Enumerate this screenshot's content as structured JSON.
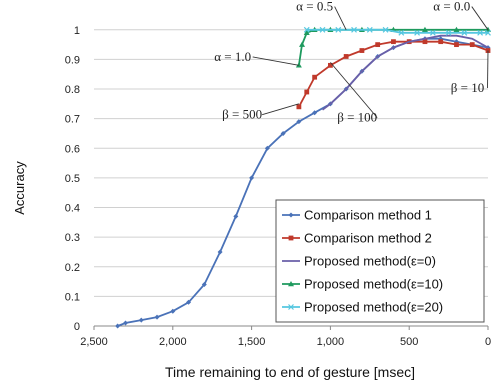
{
  "chart_data": {
    "type": "line",
    "title": "",
    "xlabel": "Time remaining to end of gesture [msec]",
    "ylabel": "Accuracy",
    "x_reversed": true,
    "xlim": [
      2500,
      0
    ],
    "ylim": [
      0,
      1.05
    ],
    "xticks": [
      "2,500",
      "2,000",
      "1,500",
      "1,000",
      "500",
      "0"
    ],
    "xtick_values": [
      2500,
      2000,
      1500,
      1000,
      500,
      0
    ],
    "yticks": [
      "0",
      "0.1",
      "0.2",
      "0.3",
      "0.4",
      "0.5",
      "0.6",
      "0.7",
      "0.8",
      "0.9",
      "1"
    ],
    "ytick_values": [
      0,
      0.1,
      0.2,
      0.3,
      0.4,
      0.5,
      0.6,
      0.7,
      0.8,
      0.9,
      1
    ],
    "grid": "horizontal",
    "legend_position": "bottom-right",
    "series": [
      {
        "name": "Comparison method 1",
        "color": "#4a72b8",
        "marker": "diamond",
        "points": [
          [
            2350,
            0.0
          ],
          [
            2300,
            0.01
          ],
          [
            2200,
            0.02
          ],
          [
            2100,
            0.03
          ],
          [
            2000,
            0.05
          ],
          [
            1900,
            0.08
          ],
          [
            1800,
            0.14
          ],
          [
            1700,
            0.25
          ],
          [
            1600,
            0.37
          ],
          [
            1500,
            0.5
          ],
          [
            1400,
            0.6
          ],
          [
            1300,
            0.65
          ],
          [
            1200,
            0.69
          ],
          [
            1100,
            0.72
          ],
          [
            1000,
            0.75
          ],
          [
            900,
            0.8
          ],
          [
            800,
            0.86
          ],
          [
            700,
            0.91
          ],
          [
            600,
            0.94
          ],
          [
            500,
            0.96
          ],
          [
            400,
            0.97
          ],
          [
            300,
            0.97
          ],
          [
            200,
            0.96
          ],
          [
            100,
            0.95
          ],
          [
            0,
            0.94
          ]
        ]
      },
      {
        "name": "Comparison method 2",
        "color": "#c0392b",
        "marker": "square",
        "points": [
          [
            1200,
            0.74
          ],
          [
            1150,
            0.79
          ],
          [
            1100,
            0.84
          ],
          [
            1000,
            0.88
          ],
          [
            900,
            0.91
          ],
          [
            800,
            0.93
          ],
          [
            700,
            0.95
          ],
          [
            600,
            0.96
          ],
          [
            500,
            0.96
          ],
          [
            400,
            0.96
          ],
          [
            300,
            0.96
          ],
          [
            200,
            0.95
          ],
          [
            100,
            0.95
          ],
          [
            0,
            0.93
          ]
        ]
      },
      {
        "name": "Proposed method(ε=0)",
        "color": "#6a5fa8",
        "marker": "line",
        "points": [
          [
            1050,
            0.73
          ],
          [
            1000,
            0.75
          ],
          [
            900,
            0.8
          ],
          [
            800,
            0.86
          ],
          [
            700,
            0.91
          ],
          [
            600,
            0.94
          ],
          [
            500,
            0.96
          ],
          [
            400,
            0.97
          ],
          [
            300,
            0.98
          ],
          [
            200,
            0.98
          ],
          [
            100,
            0.97
          ],
          [
            0,
            0.94
          ]
        ]
      },
      {
        "name": "Proposed method(ε=10)",
        "color": "#1e9a5e",
        "marker": "triangle",
        "points": [
          [
            1200,
            0.88
          ],
          [
            1180,
            0.95
          ],
          [
            1150,
            0.99
          ],
          [
            1100,
            1.0
          ],
          [
            1000,
            1.0
          ],
          [
            800,
            1.0
          ],
          [
            600,
            1.0
          ],
          [
            400,
            1.0
          ],
          [
            200,
            1.0
          ],
          [
            0,
            1.0
          ]
        ]
      },
      {
        "name": "Proposed method(ε=20)",
        "color": "#55c7e0",
        "marker": "cross",
        "points": [
          [
            1150,
            1.0
          ],
          [
            1050,
            1.0
          ],
          [
            950,
            1.0
          ],
          [
            850,
            1.0
          ],
          [
            750,
            1.0
          ],
          [
            650,
            1.0
          ],
          [
            550,
            0.99
          ],
          [
            450,
            0.99
          ],
          [
            350,
            0.99
          ],
          [
            250,
            0.99
          ],
          [
            150,
            0.99
          ],
          [
            50,
            0.99
          ],
          [
            0,
            0.99
          ]
        ]
      }
    ],
    "annotations": [
      {
        "text": "α = 0.5",
        "x": 1100,
        "y": 1.065,
        "tx": 900,
        "ty": 1.0
      },
      {
        "text": "α = 0.0",
        "x": 230,
        "y": 1.065,
        "tx": 0,
        "ty": 1.0
      },
      {
        "text": "α = 1.0",
        "x": 1620,
        "y": 0.895,
        "tx": 1200,
        "ty": 0.88
      },
      {
        "text": "β = 10",
        "x": 130,
        "y": 0.79,
        "tx": 0,
        "ty": 0.93
      },
      {
        "text": "β = 100",
        "x": 830,
        "y": 0.69,
        "tx": 1000,
        "ty": 0.89
      },
      {
        "text": "β = 500",
        "x": 1560,
        "y": 0.7,
        "tx": 1200,
        "ty": 0.75
      }
    ]
  }
}
